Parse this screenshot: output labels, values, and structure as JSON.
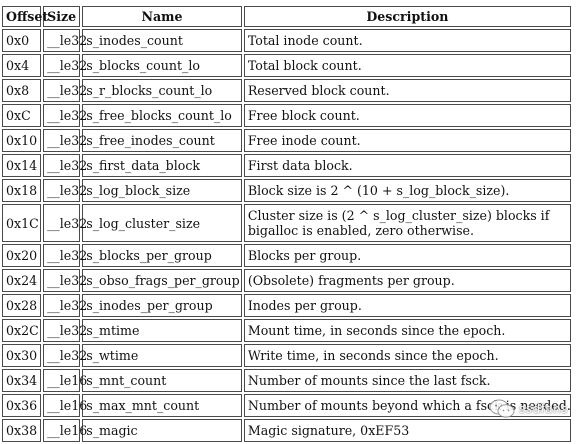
{
  "table": {
    "headers": [
      "Offset",
      "Size",
      "Name",
      "Description"
    ],
    "rows": [
      {
        "offset": "0x0",
        "size": "__le32",
        "name": "s_inodes_count",
        "description": "Total inode count."
      },
      {
        "offset": "0x4",
        "size": "__le32",
        "name": "s_blocks_count_lo",
        "description": "Total block count."
      },
      {
        "offset": "0x8",
        "size": "__le32",
        "name": "s_r_blocks_count_lo",
        "description": "Reserved block count."
      },
      {
        "offset": "0xC",
        "size": "__le32",
        "name": "s_free_blocks_count_lo",
        "description": "Free block count."
      },
      {
        "offset": "0x10",
        "size": "__le32",
        "name": "s_free_inodes_count",
        "description": "Free inode count."
      },
      {
        "offset": "0x14",
        "size": "__le32",
        "name": "s_first_data_block",
        "description": "First data block."
      },
      {
        "offset": "0x18",
        "size": "__le32",
        "name": "s_log_block_size",
        "description": "Block size is 2 ^ (10 + s_log_block_size)."
      },
      {
        "offset": "0x1C",
        "size": "__le32",
        "name": "s_log_cluster_size",
        "description": "Cluster size is (2 ^ s_log_cluster_size) blocks if bigalloc is enabled, zero otherwise."
      },
      {
        "offset": "0x20",
        "size": "__le32",
        "name": "s_blocks_per_group",
        "description": "Blocks per group."
      },
      {
        "offset": "0x24",
        "size": "__le32",
        "name": "s_obso_frags_per_group",
        "description": "(Obsolete) fragments per group."
      },
      {
        "offset": "0x28",
        "size": "__le32",
        "name": "s_inodes_per_group",
        "description": "Inodes per group."
      },
      {
        "offset": "0x2C",
        "size": "__le32",
        "name": "s_mtime",
        "description": "Mount time, in seconds since the epoch."
      },
      {
        "offset": "0x30",
        "size": "__le32",
        "name": "s_wtime",
        "description": "Write time, in seconds since the epoch."
      },
      {
        "offset": "0x34",
        "size": "__le16",
        "name": "s_mnt_count",
        "description": "Number of mounts since the last fsck."
      },
      {
        "offset": "0x36",
        "size": "__le16",
        "name": "s_max_mnt_count",
        "description": "Number of mounts beyond which a fsck is needed."
      },
      {
        "offset": "0x38",
        "size": "__le16",
        "name": "s_magic",
        "description": "Magic signature, 0xEF53"
      }
    ]
  },
  "watermark": {
    "text": "ssdfans",
    "icon": "wechat-logo-icon"
  }
}
